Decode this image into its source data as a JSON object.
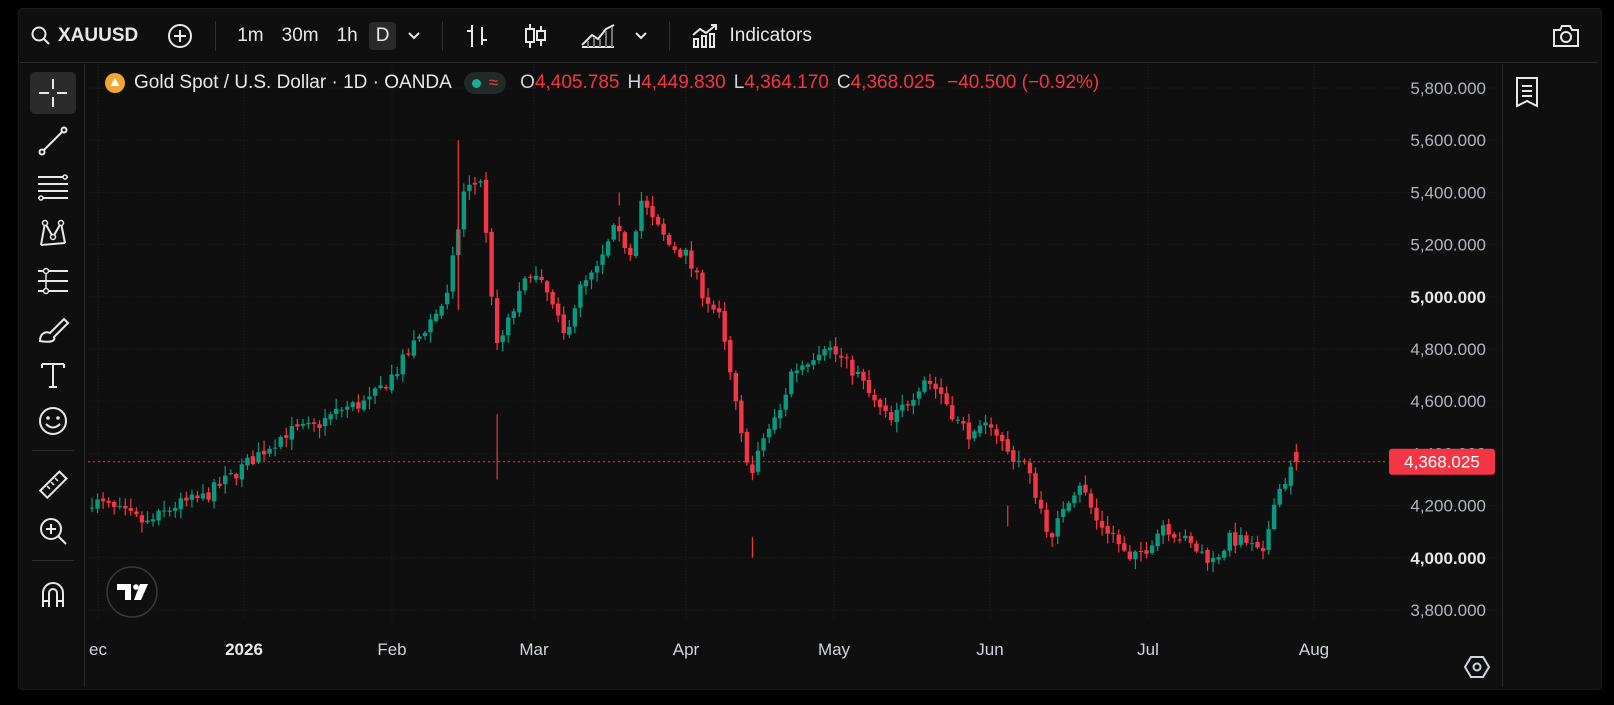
{
  "toolbar": {
    "symbol": "XAUUSD",
    "intervals": [
      "1m",
      "30m",
      "1h",
      "D"
    ],
    "active_interval": "D",
    "indicators_label": "Indicators"
  },
  "legend": {
    "title": "Gold Spot / U.S. Dollar · 1D · OANDA",
    "open_label": "O",
    "open": "4,405.785",
    "high_label": "H",
    "high": "4,449.830",
    "low_label": "L",
    "low": "4,364.170",
    "close_label": "C",
    "close": "4,368.025",
    "change": "−40.500 (−0.92%)"
  },
  "colors": {
    "up": "#089981",
    "down": "#f23645",
    "background": "#0f0f0f",
    "grid": "#1f1f1f",
    "text": "#d1d4dc"
  },
  "icons": [
    "search-icon",
    "add-symbol-icon",
    "bar-style-icon",
    "candle-style-icon",
    "area-style-icon",
    "chevron-down-icon",
    "indicators-icon",
    "camera-icon",
    "crosshair-icon",
    "trendline-icon",
    "fib-icon",
    "pattern-icon",
    "forecast-icon",
    "brush-icon",
    "text-icon",
    "emoji-icon",
    "ruler-icon",
    "zoom-in-icon",
    "magnet-icon",
    "object-tree-icon",
    "settings-icon",
    "tv-logo-icon"
  ],
  "chart_data": {
    "type": "candlestick",
    "symbol": "XAUUSD",
    "timeframe": "1D",
    "ylim": [
      3720,
      5860
    ],
    "y_ticks": [
      "5,800.000",
      "5,600.000",
      "5,400.000",
      "5,200.000",
      "5,000.000",
      "4,800.000",
      "4,600.000",
      "4,400.000",
      "4,200.000",
      "4,000.000",
      "3,800.000"
    ],
    "y_tick_values": [
      5800,
      5600,
      5400,
      5200,
      5000,
      4800,
      4600,
      4400,
      4200,
      4000,
      3800
    ],
    "x_labels": [
      "ec",
      "2026",
      "Feb",
      "Mar",
      "Apr",
      "May",
      "Jun",
      "Jul",
      "Aug"
    ],
    "current_price": "4,368.025",
    "current_price_value": 4368.025,
    "shape_anchors": [
      [
        0,
        4190,
        4220
      ],
      [
        10,
        4170,
        4130
      ],
      [
        15,
        4130,
        4200
      ],
      [
        20,
        4210,
        4230
      ],
      [
        25,
        4240,
        4310
      ],
      [
        29,
        4320,
        4380
      ],
      [
        35,
        4390,
        4480
      ],
      [
        40,
        4460,
        4500
      ],
      [
        45,
        4500,
        4570
      ],
      [
        50,
        4570,
        4600
      ],
      [
        55,
        4620,
        4720
      ],
      [
        60,
        4730,
        4880
      ],
      [
        64,
        4890,
        5000
      ],
      [
        67,
        5000,
        5400
      ],
      [
        70,
        5420,
        5450
      ],
      [
        73,
        5420,
        4800
      ],
      [
        76,
        4800,
        4950
      ],
      [
        79,
        4960,
        5100
      ],
      [
        82,
        5100,
        5010
      ],
      [
        85,
        5000,
        4850
      ],
      [
        88,
        4860,
        5030
      ],
      [
        91,
        5040,
        5100
      ],
      [
        94,
        5090,
        5250
      ],
      [
        97,
        5250,
        5180
      ],
      [
        99,
        5200,
        5370
      ],
      [
        101,
        5380,
        5290
      ],
      [
        104,
        5270,
        5200
      ],
      [
        107,
        5210,
        5160
      ],
      [
        110,
        5150,
        5020
      ],
      [
        113,
        4990,
        4920
      ],
      [
        115,
        4880,
        4700
      ],
      [
        117,
        4700,
        4460
      ],
      [
        119,
        4450,
        4320
      ],
      [
        121,
        4330,
        4460
      ],
      [
        124,
        4460,
        4560
      ],
      [
        126,
        4570,
        4710
      ],
      [
        129,
        4700,
        4760
      ],
      [
        132,
        4750,
        4820
      ],
      [
        135,
        4820,
        4760
      ],
      [
        138,
        4760,
        4700
      ],
      [
        141,
        4700,
        4590
      ],
      [
        144,
        4590,
        4520
      ],
      [
        147,
        4520,
        4600
      ],
      [
        150,
        4600,
        4690
      ],
      [
        153,
        4690,
        4630
      ],
      [
        156,
        4630,
        4520
      ],
      [
        159,
        4520,
        4460
      ],
      [
        162,
        4460,
        4520
      ],
      [
        165,
        4510,
        4400
      ],
      [
        168,
        4400,
        4360
      ],
      [
        170,
        4350,
        4250
      ],
      [
        173,
        4250,
        4060
      ],
      [
        175,
        4060,
        4200
      ],
      [
        178,
        4210,
        4290
      ],
      [
        181,
        4290,
        4140
      ],
      [
        184,
        4140,
        4090
      ],
      [
        187,
        4090,
        3980
      ],
      [
        190,
        3980,
        4040
      ],
      [
        193,
        4050,
        4130
      ],
      [
        196,
        4130,
        4080
      ],
      [
        199,
        4080,
        4030
      ],
      [
        202,
        4020,
        3990
      ],
      [
        205,
        3990,
        4070
      ],
      [
        208,
        4070,
        4060
      ],
      [
        211,
        4050,
        4000
      ],
      [
        213,
        4000,
        4230
      ],
      [
        215,
        4230,
        4300
      ],
      [
        217,
        4300,
        4368
      ]
    ]
  }
}
